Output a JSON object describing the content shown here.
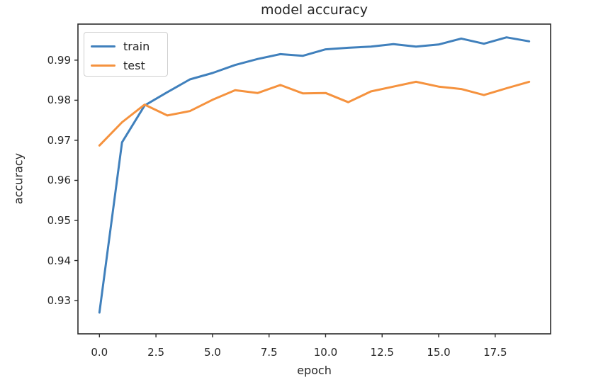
{
  "chart_data": {
    "type": "line",
    "title": "model accuracy",
    "xlabel": "epoch",
    "ylabel": "accuracy",
    "x": [
      0,
      1,
      2,
      3,
      4,
      5,
      6,
      7,
      8,
      9,
      10,
      11,
      12,
      13,
      14,
      15,
      16,
      17,
      18,
      19
    ],
    "series": [
      {
        "name": "train",
        "color": "#4080bc",
        "values": [
          0.927,
          0.9695,
          0.9787,
          0.982,
          0.9852,
          0.9868,
          0.9888,
          0.9903,
          0.9915,
          0.9911,
          0.9927,
          0.9931,
          0.9934,
          0.994,
          0.9934,
          0.9939,
          0.9954,
          0.9941,
          0.9957,
          0.9947
        ]
      },
      {
        "name": "test",
        "color": "#f5923e",
        "values": [
          0.9687,
          0.9745,
          0.9789,
          0.9762,
          0.9773,
          0.9801,
          0.9825,
          0.9818,
          0.9838,
          0.9817,
          0.9818,
          0.9795,
          0.9822,
          0.9834,
          0.9846,
          0.9834,
          0.9828,
          0.9813,
          0.983,
          0.9846
        ]
      }
    ],
    "xlim": [
      -0.95,
      19.95
    ],
    "ylim": [
      0.9217,
      0.999
    ],
    "xticks": [
      0.0,
      2.5,
      5.0,
      7.5,
      10.0,
      12.5,
      15.0,
      17.5
    ],
    "xtick_labels": [
      "0.0",
      "2.5",
      "5.0",
      "7.5",
      "10.0",
      "12.5",
      "15.0",
      "17.5"
    ],
    "yticks": [
      0.93,
      0.94,
      0.95,
      0.96,
      0.97,
      0.98,
      0.99
    ],
    "ytick_labels": [
      "0.93",
      "0.94",
      "0.95",
      "0.96",
      "0.97",
      "0.98",
      "0.99"
    ],
    "grid": false,
    "legend": {
      "position": "upper left",
      "entries": [
        "train",
        "test"
      ]
    },
    "frame_color": "#2b2b2b",
    "text_color": "#262626"
  }
}
